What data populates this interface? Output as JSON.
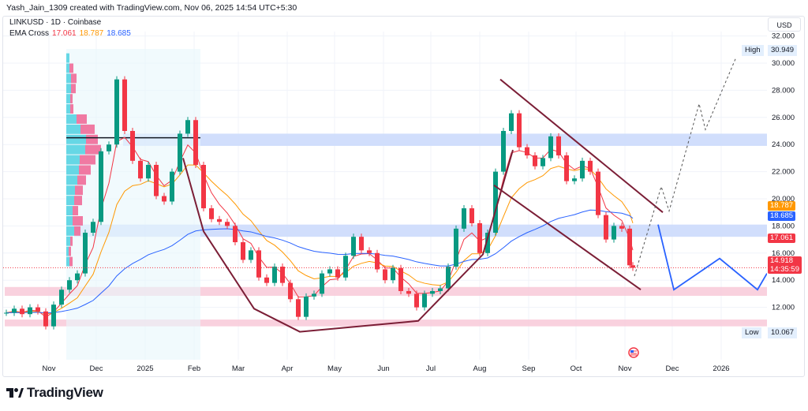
{
  "header": {
    "credit": "Yash_Jain_1309 created with TradingView.com, Nov 06, 2025 14:54 UTC+5:30"
  },
  "legend": {
    "symbol_line": "LINKUSD · 1D · Coinbase",
    "indicator_label": "EMA Cross",
    "ema_fast": "17.061",
    "ema_mid": "18.787",
    "ema_slow": "18.685"
  },
  "price_axis": {
    "currency": "USD",
    "high_label": "High",
    "high_value": "30.949",
    "low_label": "Low",
    "low_value": "10.067",
    "last_price": "14.918",
    "countdown": "14:35:59"
  },
  "logo": {
    "text": "TradingView"
  },
  "colors": {
    "up": "#089981",
    "down": "#f23645",
    "ema_fast": "#f23645",
    "ema_mid": "#ff9800",
    "ema_slow": "#2962ff",
    "pattern": "#7b1e36",
    "zone_blue": "#c9d8fb",
    "zone_pink": "#f8c9d8"
  },
  "chart_data": {
    "type": "candlestick",
    "title": "",
    "ylim": [
      9.6,
      33.2
    ],
    "grid": true,
    "y_ticks": [
      "32.000",
      "30.000",
      "28.000",
      "26.000",
      "24.000",
      "22.000",
      "20.000",
      "18.000",
      "16.000",
      "14.000",
      "12.000"
    ],
    "x_ticks": [
      {
        "label": "Nov",
        "date": "2024-11-01"
      },
      {
        "label": "Dec",
        "date": "2024-12-01"
      },
      {
        "label": "2025",
        "date": "2025-01-01"
      },
      {
        "label": "Feb",
        "date": "2025-02-01"
      },
      {
        "label": "Mar",
        "date": "2025-03-01"
      },
      {
        "label": "Apr",
        "date": "2025-04-01"
      },
      {
        "label": "May",
        "date": "2025-05-01"
      },
      {
        "label": "Jun",
        "date": "2025-06-01"
      },
      {
        "label": "Jul",
        "date": "2025-07-01"
      },
      {
        "label": "Aug",
        "date": "2025-08-01"
      },
      {
        "label": "Sep",
        "date": "2025-09-01"
      },
      {
        "label": "Oct",
        "date": "2025-10-01"
      },
      {
        "label": "Nov",
        "date": "2025-11-01"
      },
      {
        "label": "Dec",
        "date": "2025-12-01"
      },
      {
        "label": "2026",
        "date": "2026-01-01"
      }
    ],
    "closes": [
      [
        "2024-10-05",
        11.6
      ],
      [
        "2024-10-10",
        11.9
      ],
      [
        "2024-10-15",
        11.5
      ],
      [
        "2024-10-20",
        12.0
      ],
      [
        "2024-10-25",
        11.7
      ],
      [
        "2024-10-30",
        10.6
      ],
      [
        "2024-11-04",
        12.2
      ],
      [
        "2024-11-09",
        13.3
      ],
      [
        "2024-11-14",
        14.0
      ],
      [
        "2024-11-19",
        14.5
      ],
      [
        "2024-11-24",
        17.5
      ],
      [
        "2024-11-29",
        18.3
      ],
      [
        "2024-12-04",
        23.5
      ],
      [
        "2024-12-09",
        24.0
      ],
      [
        "2024-12-14",
        28.8
      ],
      [
        "2024-12-19",
        25.0
      ],
      [
        "2024-12-24",
        22.8
      ],
      [
        "2024-12-29",
        21.5
      ],
      [
        "2025-01-03",
        22.5
      ],
      [
        "2025-01-08",
        20.2
      ],
      [
        "2025-01-13",
        19.8
      ],
      [
        "2025-01-18",
        22.0
      ],
      [
        "2025-01-23",
        24.8
      ],
      [
        "2025-01-28",
        25.8
      ],
      [
        "2025-02-02",
        22.5
      ],
      [
        "2025-02-07",
        19.3
      ],
      [
        "2025-02-12",
        18.5
      ],
      [
        "2025-02-17",
        18.3
      ],
      [
        "2025-02-22",
        18.0
      ],
      [
        "2025-02-27",
        16.8
      ],
      [
        "2025-03-04",
        15.5
      ],
      [
        "2025-03-09",
        16.2
      ],
      [
        "2025-03-14",
        14.2
      ],
      [
        "2025-03-19",
        13.8
      ],
      [
        "2025-03-24",
        15.0
      ],
      [
        "2025-03-29",
        13.8
      ],
      [
        "2025-04-03",
        12.6
      ],
      [
        "2025-04-08",
        11.3
      ],
      [
        "2025-04-13",
        12.8
      ],
      [
        "2025-04-18",
        13.0
      ],
      [
        "2025-04-23",
        14.5
      ],
      [
        "2025-04-28",
        14.8
      ],
      [
        "2025-05-03",
        14.2
      ],
      [
        "2025-05-08",
        15.8
      ],
      [
        "2025-05-13",
        17.2
      ],
      [
        "2025-05-18",
        16.2
      ],
      [
        "2025-05-23",
        16.0
      ],
      [
        "2025-05-28",
        14.8
      ],
      [
        "2025-06-02",
        14.0
      ],
      [
        "2025-06-07",
        14.9
      ],
      [
        "2025-06-12",
        13.2
      ],
      [
        "2025-06-17",
        13.0
      ],
      [
        "2025-06-22",
        12.0
      ],
      [
        "2025-06-27",
        13.0
      ],
      [
        "2025-07-02",
        13.2
      ],
      [
        "2025-07-07",
        13.4
      ],
      [
        "2025-07-12",
        15.0
      ],
      [
        "2025-07-17",
        17.8
      ],
      [
        "2025-07-22",
        19.3
      ],
      [
        "2025-07-27",
        18.2
      ],
      [
        "2025-08-01",
        16.0
      ],
      [
        "2025-08-06",
        17.5
      ],
      [
        "2025-08-11",
        22.0
      ],
      [
        "2025-08-16",
        25.0
      ],
      [
        "2025-08-21",
        26.3
      ],
      [
        "2025-08-26",
        23.8
      ],
      [
        "2025-08-31",
        23.2
      ],
      [
        "2025-09-05",
        22.4
      ],
      [
        "2025-09-10",
        23.0
      ],
      [
        "2025-09-15",
        24.6
      ],
      [
        "2025-09-20",
        23.2
      ],
      [
        "2025-09-25",
        21.3
      ],
      [
        "2025-09-30",
        21.5
      ],
      [
        "2025-10-05",
        22.8
      ],
      [
        "2025-10-10",
        22.0
      ],
      [
        "2025-10-15",
        18.8
      ],
      [
        "2025-10-20",
        17.0
      ],
      [
        "2025-10-25",
        18.0
      ],
      [
        "2025-10-30",
        17.8
      ],
      [
        "2025-11-04",
        15.1
      ],
      [
        "2025-11-06",
        14.918
      ]
    ],
    "zones": [
      {
        "kind": "resistance",
        "from": "2024-12-18",
        "low": 23.9,
        "high": 24.8,
        "color": "#c9d8fb"
      },
      {
        "kind": "resistance",
        "from": "2024-11-17",
        "low": 17.2,
        "high": 18.1,
        "color": "#c9d8fb"
      },
      {
        "kind": "support",
        "from": "2024-10-04",
        "low": 12.85,
        "high": 13.5,
        "color": "#f8c9d8"
      },
      {
        "kind": "support",
        "from": "2024-10-04",
        "low": 10.6,
        "high": 11.1,
        "color": "#f8c9d8"
      }
    ],
    "volume_profile": {
      "from": "2024-11-12",
      "to": "2025-02-05",
      "poc": 24.5,
      "rows": [
        [
          30.0,
          4,
          0
        ],
        [
          29.25,
          4,
          5
        ],
        [
          28.5,
          6,
          7
        ],
        [
          27.75,
          6,
          6
        ],
        [
          27.0,
          5,
          3
        ],
        [
          26.25,
          5,
          4
        ],
        [
          25.5,
          13,
          13
        ],
        [
          24.75,
          18,
          18
        ],
        [
          24.0,
          25,
          15
        ],
        [
          23.25,
          24,
          20
        ],
        [
          22.5,
          17,
          20
        ],
        [
          21.75,
          16,
          15
        ],
        [
          21.0,
          14,
          11
        ],
        [
          20.25,
          11,
          10
        ],
        [
          19.5,
          10,
          10
        ],
        [
          18.75,
          8,
          7
        ],
        [
          18.0,
          8,
          13
        ],
        [
          17.25,
          10,
          8
        ],
        [
          16.5,
          5,
          3
        ],
        [
          15.75,
          3,
          3
        ],
        [
          15.0,
          4,
          4
        ]
      ]
    },
    "drawings": {
      "cup": [
        [
          "2025-01-25",
          23.0
        ],
        [
          "2025-02-07",
          17.6
        ],
        [
          "2025-03-11",
          11.9
        ],
        [
          "2025-04-09",
          10.2
        ],
        [
          "2025-06-23",
          11.0
        ],
        [
          "2025-08-03",
          15.9
        ],
        [
          "2025-08-22",
          23.6
        ]
      ],
      "channel_upper": [
        [
          "2025-08-14",
          28.8
        ],
        [
          "2025-11-25",
          19.0
        ]
      ],
      "channel_lower": [
        [
          "2025-08-10",
          21.0
        ],
        [
          "2025-11-11",
          13.3
        ]
      ],
      "projection_solid": [
        [
          "2025-11-22",
          18.1
        ],
        [
          "2025-12-02",
          13.3
        ],
        [
          "2025-12-31",
          15.6
        ],
        [
          "2026-01-24",
          13.3
        ],
        [
          "2026-01-30",
          14.5
        ]
      ],
      "projection_dashed": [
        [
          "2025-11-07",
          14.3
        ],
        [
          "2025-11-24",
          20.9
        ],
        [
          "2025-11-29",
          19.1
        ],
        [
          "2025-12-18",
          27.0
        ],
        [
          "2025-12-22",
          25.1
        ],
        [
          "2026-01-10",
          30.3
        ]
      ]
    }
  }
}
